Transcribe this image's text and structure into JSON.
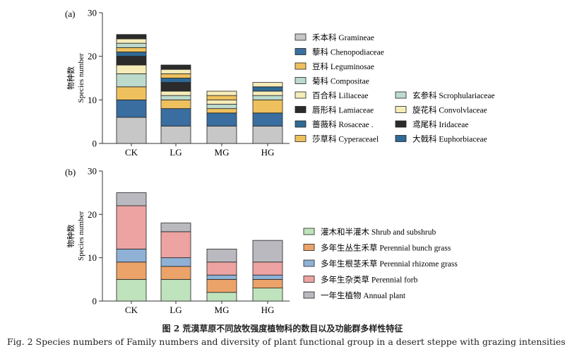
{
  "chart_data": [
    {
      "type": "bar",
      "stacked": true,
      "panel_label": "(a)",
      "categories": [
        "CK",
        "LG",
        "MG",
        "HG"
      ],
      "ylabel_zh": "物种数",
      "ylabel_en": "Species number",
      "ylim": [
        0,
        30
      ],
      "yticks": [
        0,
        10,
        20,
        30
      ],
      "legend_position": "right",
      "series": [
        {
          "name": "禾本科 Gramineae",
          "values": [
            6,
            4,
            4,
            4
          ],
          "color": "#c7c7c7"
        },
        {
          "name": "藜科 Chenopodiaceae",
          "values": [
            4,
            4,
            3,
            3
          ],
          "color": "#3a6ea0"
        },
        {
          "name": "豆科 Leguminosae",
          "values": [
            3,
            2,
            1,
            3
          ],
          "color": "#efc15e"
        },
        {
          "name": "菊科 Compositae",
          "values": [
            3,
            1,
            1,
            1
          ],
          "color": "#bddbcd"
        },
        {
          "name": "百合科 Liliaceae",
          "values": [
            2,
            1,
            1,
            1
          ],
          "color": "#f6ecb8"
        },
        {
          "name": "唇形科 Lamiaceae",
          "values": [
            2,
            2,
            0,
            0
          ],
          "color": "#2b2b2b"
        },
        {
          "name": "蔷薇科 Rosaceae .",
          "values": [
            1,
            1,
            0,
            1
          ],
          "color": "#2f6a95"
        },
        {
          "name": "莎草科 Cyperaceael",
          "values": [
            1,
            1,
            1,
            0
          ],
          "color": "#efc15e"
        },
        {
          "name": "玄参科 Scrophulariaceae",
          "values": [
            1,
            0,
            0,
            0
          ],
          "color": "#bddbcd"
        },
        {
          "name": "旋花科 Convolvlaceae",
          "values": [
            1,
            1,
            1,
            1
          ],
          "color": "#f6ecb8"
        },
        {
          "name": "鸢尾科 Iridaceae",
          "values": [
            1,
            1,
            0,
            0
          ],
          "color": "#2b2b2b"
        },
        {
          "name": "大戟科 Euphorbiaceae",
          "values": [
            0,
            0,
            0,
            0
          ],
          "color": "#2f6a95"
        }
      ]
    },
    {
      "type": "bar",
      "stacked": true,
      "panel_label": "(b)",
      "categories": [
        "CK",
        "LG",
        "MG",
        "HG"
      ],
      "ylabel_zh": "物种数",
      "ylabel_en": "Species number",
      "ylim": [
        0,
        30
      ],
      "yticks": [
        0,
        10,
        20,
        30
      ],
      "legend_position": "right",
      "series": [
        {
          "name": "灌木和半灌木 Shrub and subshrub",
          "values": [
            5,
            5,
            2,
            3
          ],
          "color": "#bfe3bc"
        },
        {
          "name": "多年生丛生禾草 Perennial bunch grass",
          "values": [
            4,
            3,
            3,
            2
          ],
          "color": "#eba36a"
        },
        {
          "name": "多年生根茎禾草 Perennial rhizome grass",
          "values": [
            3,
            2,
            1,
            1
          ],
          "color": "#8fb1d6"
        },
        {
          "name": "多年生杂类草 Perennial forb",
          "values": [
            10,
            6,
            3,
            3
          ],
          "color": "#eca3a1"
        },
        {
          "name": "一年生植物 Annual plant",
          "values": [
            3,
            2,
            3,
            5
          ],
          "color": "#b9b9bf"
        }
      ]
    }
  ],
  "caption": {
    "zh": "图 2   荒漠草原不同放牧强度植物科的数目以及功能群多样性特征",
    "en": "Fig. 2   Species numbers of Family numbers and diversity of plant functional group in a desert steppe with grazing intensities"
  }
}
